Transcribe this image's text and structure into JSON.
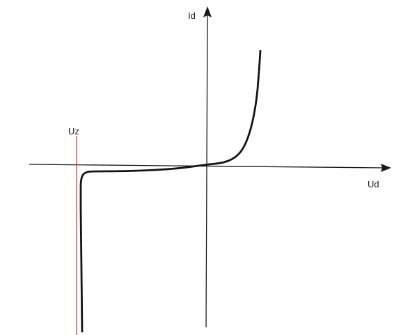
{
  "labels": {
    "y_axis": "Id",
    "x_axis": "Ud",
    "zener_voltage": "Uz"
  },
  "colors": {
    "axes": "#1a1a1a",
    "curve": "#141414",
    "zener_marker": "#b03030"
  }
}
